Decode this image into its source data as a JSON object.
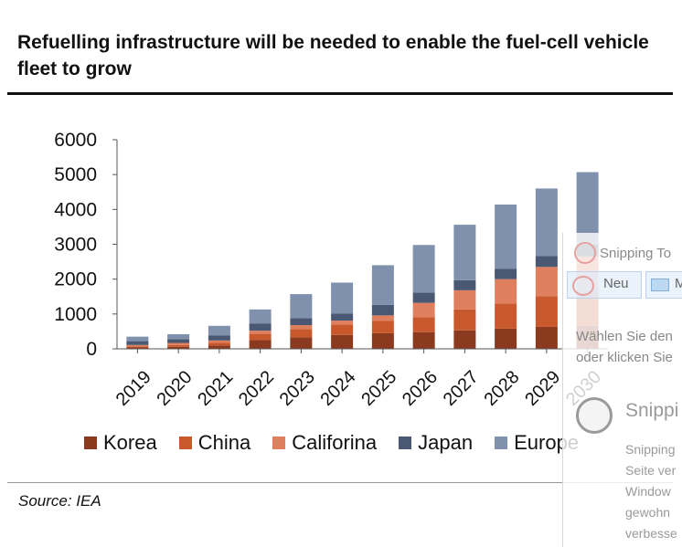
{
  "header": {
    "title": "Refuelling infrastructure will be needed to enable the fuel-cell vehicle fleet to grow"
  },
  "footer": {
    "source": "Source: IEA"
  },
  "colors": {
    "Korea": "#8b3a1f",
    "China": "#c9582c",
    "Califorina": "#e07f5e",
    "Japan": "#4a5873",
    "Europe": "#7f91ad"
  },
  "chart_data": {
    "type": "bar",
    "stacked": true,
    "title": "Refuelling infrastructure will be needed to enable the fuel-cell vehicle fleet to grow",
    "xlabel": "",
    "ylabel": "",
    "ylim": [
      0,
      6000
    ],
    "yticks": [
      0,
      1000,
      2000,
      3000,
      4000,
      5000,
      6000
    ],
    "categories": [
      "2019",
      "2020",
      "2021",
      "2022",
      "2023",
      "2024",
      "2025",
      "2026",
      "2027",
      "2028",
      "2029",
      "2030"
    ],
    "series": [
      {
        "name": "Korea",
        "values": [
          40,
          60,
          100,
          250,
          330,
          400,
          450,
          480,
          530,
          580,
          630,
          660
        ]
      },
      {
        "name": "China",
        "values": [
          30,
          50,
          70,
          180,
          240,
          300,
          350,
          430,
          600,
          720,
          880,
          1000
        ]
      },
      {
        "name": "Califorina",
        "values": [
          40,
          60,
          70,
          90,
          110,
          110,
          160,
          410,
          550,
          700,
          840,
          990
        ]
      },
      {
        "name": "Japan",
        "values": [
          110,
          110,
          140,
          210,
          200,
          200,
          300,
          290,
          290,
          300,
          310,
          340
        ]
      },
      {
        "name": "Europe",
        "values": [
          130,
          140,
          280,
          400,
          690,
          890,
          1140,
          1370,
          1590,
          1840,
          1940,
          2080
        ]
      }
    ],
    "legend_position": "bottom",
    "grid": false
  },
  "snipping_tool": {
    "title": "Snipping To",
    "new_label": "Neu",
    "mode_label": "M",
    "instruction_line1": "Wählen Sie den",
    "instruction_line2": "oder klicken Sie",
    "app_name": "Snippi",
    "description": [
      "Snipping",
      "Seite ver",
      "Window",
      "gewohn",
      "verbesse"
    ]
  }
}
